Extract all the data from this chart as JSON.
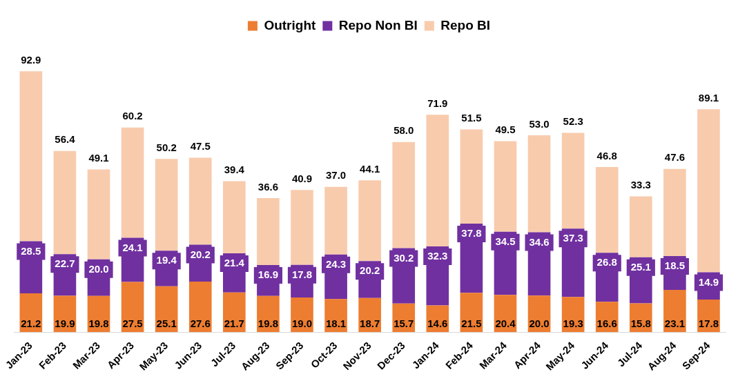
{
  "chart_data": {
    "type": "bar",
    "stacked": true,
    "legend": "top",
    "grid": false,
    "categories": [
      "Jan-23",
      "Feb-23",
      "Mar-23",
      "Apr-23",
      "May-23",
      "Jun-23",
      "Jul-23",
      "Aug-23",
      "Sep-23",
      "Oct-23",
      "Nov-23",
      "Dec-23",
      "Jan-24",
      "Feb-24",
      "Mar-24",
      "Apr-24",
      "May-24",
      "Jun-24",
      "Jul-24",
      "Aug-24",
      "Sep-24"
    ],
    "series": [
      {
        "name": "Outright",
        "color": "#ed7d31",
        "values": [
          21.2,
          19.9,
          19.8,
          27.5,
          25.1,
          27.6,
          21.7,
          19.8,
          19,
          18.1,
          18.7,
          15.7,
          14.6,
          21.5,
          20.4,
          20,
          19.3,
          16.6,
          15.8,
          23.1,
          17.8
        ],
        "value_labels": [
          "21.2",
          "19.9",
          "19.8",
          "27.5",
          "25.1",
          "27.6",
          "21.7",
          "19.8",
          "19.0",
          "18.1",
          "18.7",
          "15.7",
          "14.6",
          "21.5",
          "20.4",
          "20.0",
          "19.3",
          "16.6",
          "15.8",
          "23.1",
          "17.8"
        ]
      },
      {
        "name": "Repo Non BI",
        "color": "#7030a0",
        "values": [
          28.5,
          22.7,
          20,
          24.1,
          19.4,
          20.2,
          21.4,
          16.9,
          17.8,
          24.3,
          20.2,
          30.2,
          32.3,
          37.8,
          34.5,
          34.6,
          37.3,
          26.8,
          25.1,
          18.5,
          14.9
        ],
        "value_labels": [
          "28.5",
          "22.7",
          "20.0",
          "24.1",
          "19.4",
          "20.2",
          "21.4",
          "16.9",
          "17.8",
          "24.3",
          "20.2",
          "30.2",
          "32.3",
          "37.8",
          "34.5",
          "34.6",
          "37.3",
          "26.8",
          "25.1",
          "18.5",
          "14.9"
        ]
      },
      {
        "name": "Repo BI",
        "color": "#f8cbad",
        "values": [
          92.9,
          56.4,
          49.1,
          60.2,
          50.2,
          47.5,
          39.4,
          36.6,
          40.9,
          37,
          44.1,
          58,
          71.9,
          51.5,
          49.5,
          53,
          52.3,
          46.8,
          33.3,
          47.6,
          89.1
        ],
        "value_labels": [
          "92.9",
          "56.4",
          "49.1",
          "60.2",
          "50.2",
          "47.5",
          "39.4",
          "36.6",
          "40.9",
          "37.0",
          "44.1",
          "58.0",
          "71.9",
          "51.5",
          "49.5",
          "53.0",
          "52.3",
          "46.8",
          "33.3",
          "47.6",
          "89.1"
        ]
      }
    ]
  }
}
